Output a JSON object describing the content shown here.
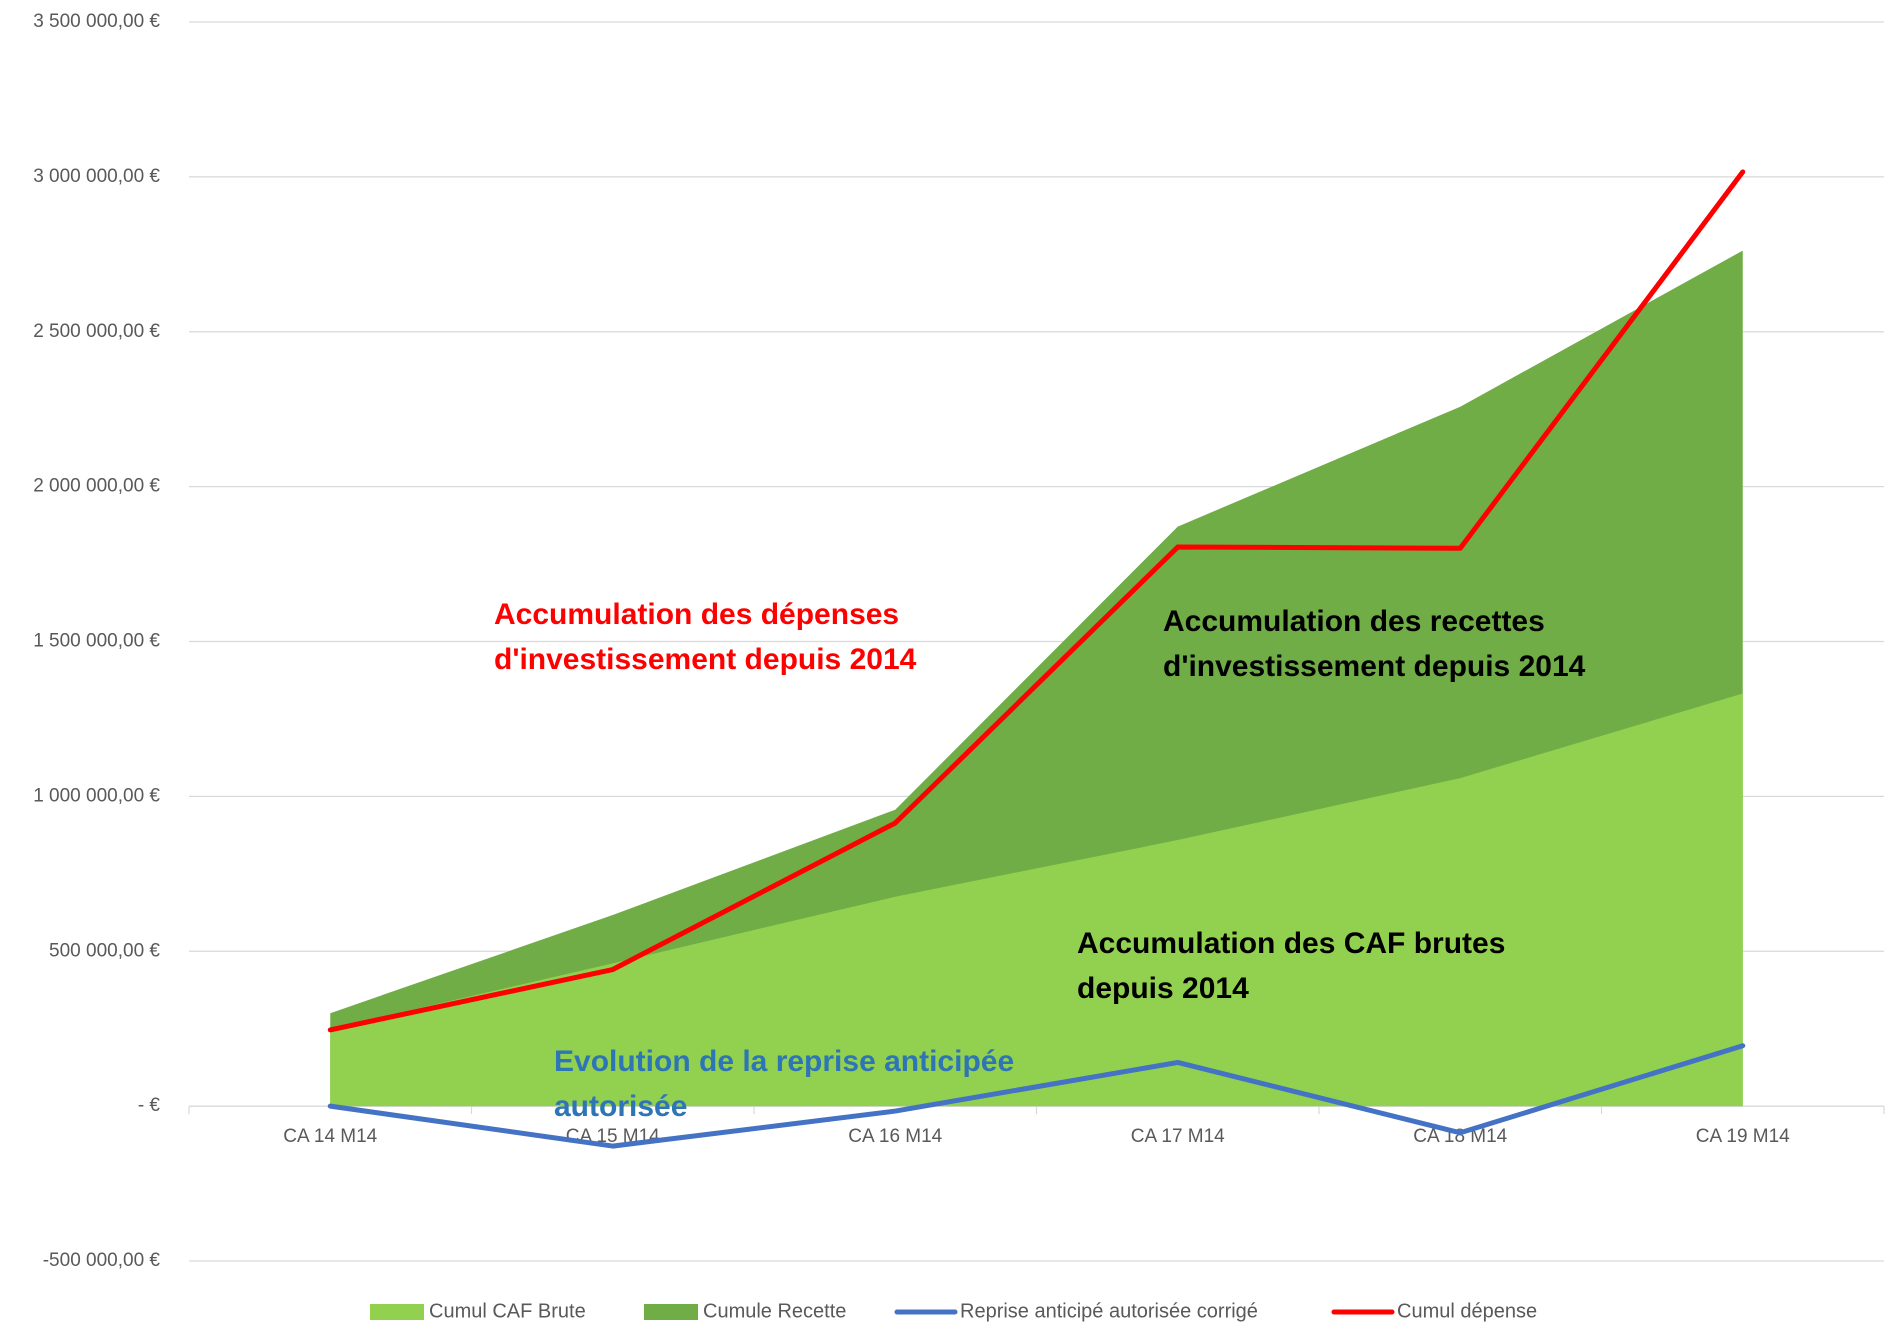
{
  "chart_data": {
    "type": "area",
    "categories": [
      "CA 14 M14",
      "CA 15 M14",
      "CA 16 M14",
      "CA 17 M14",
      "CA 18 M14",
      "CA 19 M14"
    ],
    "series": [
      {
        "name": "Cumul CAF Brute",
        "kind": "area",
        "color": "#92d050",
        "values": [
          250000,
          461000,
          676000,
          859000,
          1059000,
          1332000
        ]
      },
      {
        "name": "Cumule Recette",
        "kind": "area",
        "color": "#70ad47",
        "values": [
          300000,
          617000,
          957000,
          1871000,
          2258000,
          2762000
        ]
      },
      {
        "name": "Reprise anticipé autorisée corrigé",
        "kind": "line",
        "color": "#4472c4",
        "values": [
          0,
          -129000,
          -16000,
          141000,
          -86000,
          195000
        ]
      },
      {
        "name": "Cumul dépense",
        "kind": "line",
        "color": "#ff0000",
        "values": [
          246000,
          441000,
          914000,
          1805000,
          1801000,
          3016000
        ]
      }
    ],
    "ylim": [
      -500000,
      3500000
    ],
    "yticks": [
      {
        "value": -500000,
        "label": "-500 000,00 €"
      },
      {
        "value": 0,
        "label": "-  €"
      },
      {
        "value": 500000,
        "label": "500 000,00 €"
      },
      {
        "value": 1000000,
        "label": "1 000 000,00 €"
      },
      {
        "value": 1500000,
        "label": "1 500 000,00 €"
      },
      {
        "value": 2000000,
        "label": "2 000 000,00 €"
      },
      {
        "value": 2500000,
        "label": "2 500 000,00 €"
      },
      {
        "value": 3000000,
        "label": "3 000 000,00 €"
      },
      {
        "value": 3500000,
        "label": "3 500 000,00 €"
      }
    ],
    "grid": true,
    "legend": "bottom",
    "annotations": [
      {
        "lines": [
          "Accumulation des dépenses",
          "d'investissement depuis 2014"
        ],
        "color": "#ff0000"
      },
      {
        "lines": [
          "Accumulation des recettes",
          "d'investissement depuis 2014"
        ],
        "color": "#000000"
      },
      {
        "lines": [
          "Accumulation des CAF brutes",
          "depuis 2014"
        ],
        "color": "#000000"
      },
      {
        "lines": [
          "Evolution de la reprise anticipée",
          "autorisée"
        ],
        "color": "#2e75b6"
      }
    ]
  }
}
